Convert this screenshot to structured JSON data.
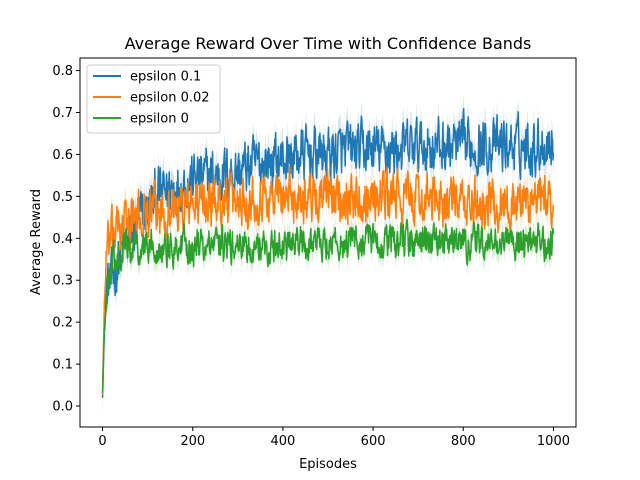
{
  "chart_data": {
    "type": "line",
    "title": "Average Reward Over Time with Confidence Bands",
    "xlabel": "Episodes",
    "ylabel": "Average Reward",
    "xlim": [
      -50,
      1050
    ],
    "ylim": [
      -0.05,
      0.83
    ],
    "xticks": [
      0,
      200,
      400,
      600,
      800,
      1000
    ],
    "yticks": [
      0.0,
      0.1,
      0.2,
      0.3,
      0.4,
      0.5,
      0.6,
      0.7,
      0.8
    ],
    "legend_position": "top-left",
    "grid": false,
    "series": [
      {
        "name": "epsilon 0.1",
        "color": "#1f77b4",
        "x": [
          0,
          5,
          10,
          20,
          30,
          40,
          50,
          60,
          80,
          100,
          120,
          150,
          200,
          250,
          300,
          350,
          400,
          450,
          500,
          550,
          600,
          650,
          700,
          750,
          800,
          850,
          900,
          950,
          1000
        ],
        "values": [
          0.03,
          0.22,
          0.28,
          0.3,
          0.33,
          0.36,
          0.38,
          0.4,
          0.44,
          0.47,
          0.5,
          0.52,
          0.54,
          0.55,
          0.56,
          0.58,
          0.59,
          0.6,
          0.6,
          0.61,
          0.61,
          0.61,
          0.62,
          0.62,
          0.62,
          0.62,
          0.62,
          0.62,
          0.63
        ],
        "band": 0.035
      },
      {
        "name": "epsilon 0.02",
        "color": "#ff7f0e",
        "x": [
          0,
          5,
          10,
          20,
          30,
          40,
          50,
          60,
          80,
          100,
          120,
          150,
          200,
          250,
          300,
          350,
          400,
          450,
          500,
          550,
          600,
          650,
          700,
          750,
          800,
          850,
          900,
          950,
          1000
        ],
        "values": [
          0.03,
          0.3,
          0.37,
          0.4,
          0.42,
          0.43,
          0.44,
          0.44,
          0.45,
          0.46,
          0.46,
          0.47,
          0.48,
          0.49,
          0.49,
          0.5,
          0.5,
          0.5,
          0.5,
          0.5,
          0.5,
          0.5,
          0.49,
          0.49,
          0.48,
          0.48,
          0.48,
          0.49,
          0.49
        ],
        "band": 0.03
      },
      {
        "name": "epsilon 0",
        "color": "#2ca02c",
        "x": [
          0,
          5,
          10,
          20,
          30,
          40,
          50,
          60,
          80,
          100,
          120,
          150,
          200,
          250,
          300,
          350,
          400,
          450,
          500,
          550,
          600,
          650,
          700,
          750,
          800,
          850,
          900,
          950,
          1000
        ],
        "values": [
          0.03,
          0.22,
          0.3,
          0.33,
          0.36,
          0.37,
          0.38,
          0.38,
          0.38,
          0.38,
          0.38,
          0.38,
          0.38,
          0.38,
          0.38,
          0.38,
          0.38,
          0.39,
          0.39,
          0.39,
          0.39,
          0.39,
          0.39,
          0.39,
          0.39,
          0.39,
          0.39,
          0.39,
          0.39
        ],
        "band": 0.025
      }
    ]
  }
}
